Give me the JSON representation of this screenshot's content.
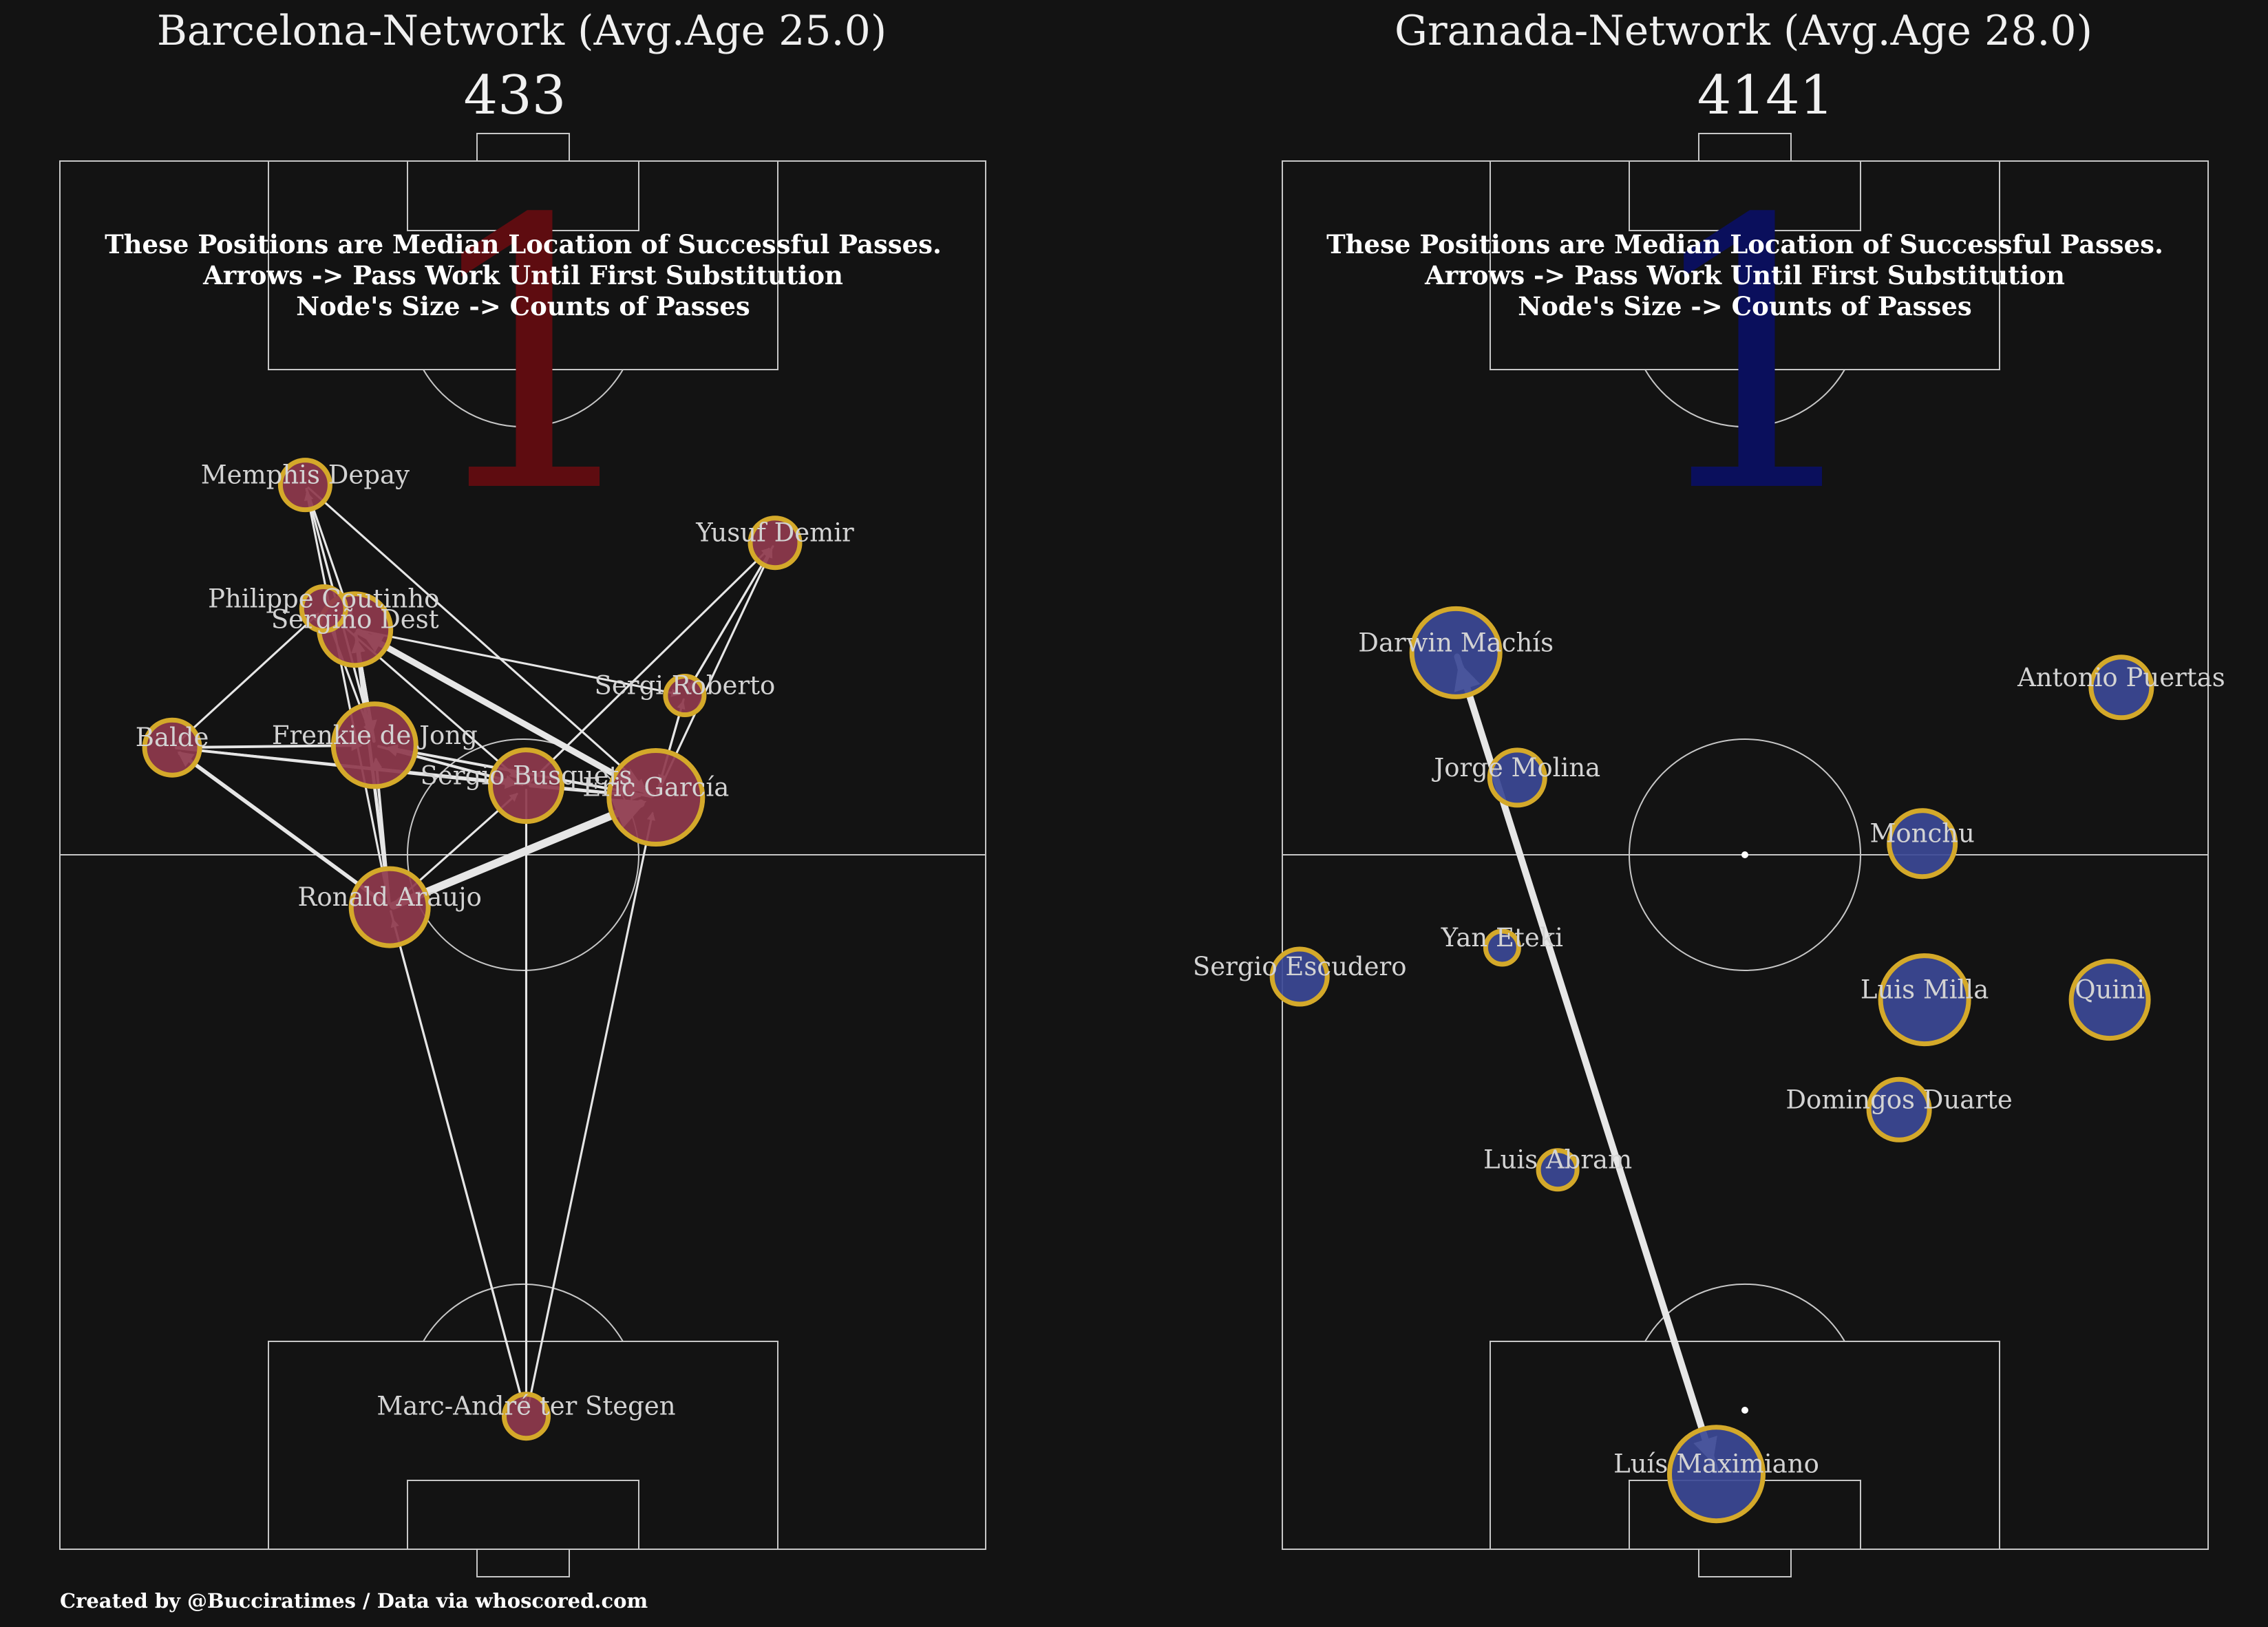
{
  "credit": "Created by @Bucciratimes / Data via whoscored.com",
  "colors": {
    "background": "#131313",
    "pitch_lines": "#c7c7c7",
    "node_edge": "#d4a92a",
    "arrow": "#e6e6e6",
    "barcelona_node": "#8f3a4d",
    "granada_node": "#3c4996",
    "barcelona_watermark": "#5e0c10",
    "granada_watermark": "#0a0f5c"
  },
  "chart_data": [
    {
      "type": "pass-network",
      "title": "Barcelona-Network (Avg.Age 25.0)",
      "subtitle": "433",
      "watermark": "1",
      "notes": [
        "These Positions are Median Location of Successful Passes.",
        "Arrows -> Pass Work Until First Substitution",
        "Node's Size -> Counts of Passes"
      ],
      "pitch": {
        "x_range": [
          0,
          80
        ],
        "y_range": [
          0,
          120
        ]
      },
      "players": [
        {
          "name": "Marc-André ter Stegen",
          "x": 40.3,
          "y": 11.5,
          "size": 4
        },
        {
          "name": "Ronald Araujo",
          "x": 28.5,
          "y": 55.5,
          "size": 7
        },
        {
          "name": "Eric García",
          "x": 51.5,
          "y": 65.0,
          "size": 8.5
        },
        {
          "name": "Sergio Busquets",
          "x": 40.3,
          "y": 66.0,
          "size": 6.5
        },
        {
          "name": "Frenkie de Jong",
          "x": 27.2,
          "y": 69.5,
          "size": 7.5
        },
        {
          "name": "Balde",
          "x": 9.7,
          "y": 69.3,
          "size": 5
        },
        {
          "name": "Sergi Roberto",
          "x": 54.0,
          "y": 73.8,
          "size": 3.5
        },
        {
          "name": "Sergiño Dest",
          "x": 25.5,
          "y": 79.5,
          "size": 6.5
        },
        {
          "name": "Philippe Coutinho",
          "x": 22.8,
          "y": 81.3,
          "size": 4
        },
        {
          "name": "Yusuf Demir",
          "x": 61.8,
          "y": 87.0,
          "size": 4.5
        },
        {
          "name": "Memphis Depay",
          "x": 21.2,
          "y": 92.0,
          "size": 4.5
        }
      ],
      "passes": [
        {
          "from": "Ronald Araujo",
          "to": "Eric García",
          "count": 12
        },
        {
          "from": "Ronald Araujo",
          "to": "Balde",
          "count": 5
        },
        {
          "from": "Ronald Araujo",
          "to": "Sergiño Dest",
          "count": 4
        },
        {
          "from": "Ronald Araujo",
          "to": "Frenkie de Jong",
          "count": 3
        },
        {
          "from": "Ronald Araujo",
          "to": "Sergio Busquets",
          "count": 2
        },
        {
          "from": "Ronald Araujo",
          "to": "Memphis Depay",
          "count": 2
        },
        {
          "from": "Sergiño Dest",
          "to": "Eric García",
          "count": 9
        },
        {
          "from": "Eric García",
          "to": "Sergiño Dest",
          "count": 7
        },
        {
          "from": "Frenkie de Jong",
          "to": "Sergiño Dest",
          "count": 4
        },
        {
          "from": "Sergiño Dest",
          "to": "Frenkie de Jong",
          "count": 4
        },
        {
          "from": "Balde",
          "to": "Sergio Busquets",
          "count": 3
        },
        {
          "from": "Balde",
          "to": "Frenkie de Jong",
          "count": 3
        },
        {
          "from": "Balde",
          "to": "Eric García",
          "count": 2
        },
        {
          "from": "Balde",
          "to": "Philippe Coutinho",
          "count": 2
        },
        {
          "from": "Frenkie de Jong",
          "to": "Sergio Busquets",
          "count": 3
        },
        {
          "from": "Sergio Busquets",
          "to": "Frenkie de Jong",
          "count": 3
        },
        {
          "from": "Sergio Busquets",
          "to": "Eric García",
          "count": 3
        },
        {
          "from": "Eric García",
          "to": "Frenkie de Jong",
          "count": 3
        },
        {
          "from": "Eric García",
          "to": "Yusuf Demir",
          "count": 2
        },
        {
          "from": "Eric García",
          "to": "Sergi Roberto",
          "count": 2
        },
        {
          "from": "Sergi Roberto",
          "to": "Eric García",
          "count": 2
        },
        {
          "from": "Sergi Roberto",
          "to": "Yusuf Demir",
          "count": 2
        },
        {
          "from": "Sergio Busquets",
          "to": "Yusuf Demir",
          "count": 2
        },
        {
          "from": "Sergiño Dest",
          "to": "Sergi Roberto",
          "count": 2
        },
        {
          "from": "Memphis Depay",
          "to": "Eric García",
          "count": 2
        },
        {
          "from": "Memphis Depay",
          "to": "Frenkie de Jong",
          "count": 2
        },
        {
          "from": "Memphis Depay",
          "to": "Sergiño Dest",
          "count": 2
        },
        {
          "from": "Frenkie de Jong",
          "to": "Memphis Depay",
          "count": 2
        },
        {
          "from": "Philippe Coutinho",
          "to": "Frenkie de Jong",
          "count": 2
        },
        {
          "from": "Philippe Coutinho",
          "to": "Sergio Busquets",
          "count": 2
        },
        {
          "from": "Marc-André ter Stegen",
          "to": "Ronald Araujo",
          "count": 2
        },
        {
          "from": "Marc-André ter Stegen",
          "to": "Eric García",
          "count": 2
        },
        {
          "from": "Ronald Araujo",
          "to": "Marc-André ter Stegen",
          "count": 2
        },
        {
          "from": "Sergio Busquets",
          "to": "Marc-André ter Stegen",
          "count": 2
        },
        {
          "from": "Yusuf Demir",
          "to": "Sergi Roberto",
          "count": 2
        }
      ]
    },
    {
      "type": "pass-network",
      "title": "Granada-Network (Avg.Age 28.0)",
      "subtitle": "4141",
      "watermark": "1",
      "notes": [
        "These Positions are Median Location of Successful Passes.",
        "Arrows -> Pass Work Until First Substitution",
        "Node's Size -> Counts of Passes"
      ],
      "pitch": {
        "x_range": [
          0,
          80
        ],
        "y_range": [
          0,
          120
        ]
      },
      "players": [
        {
          "name": "Luís Maximiano",
          "x": 37.5,
          "y": 6.5,
          "size": 8.5
        },
        {
          "name": "Luis Abram",
          "x": 23.8,
          "y": 32.8,
          "size": 3.5
        },
        {
          "name": "Domingos Duarte",
          "x": 53.3,
          "y": 38.0,
          "size": 5.5
        },
        {
          "name": "Quini",
          "x": 71.5,
          "y": 47.5,
          "size": 7
        },
        {
          "name": "Luis Milla",
          "x": 55.5,
          "y": 47.5,
          "size": 8
        },
        {
          "name": "Sergio Escudero",
          "x": 1.5,
          "y": 49.5,
          "size": 5
        },
        {
          "name": "Yan Eteki",
          "x": 19.0,
          "y": 52.0,
          "size": 3
        },
        {
          "name": "Monchu",
          "x": 55.3,
          "y": 61.0,
          "size": 6
        },
        {
          "name": "Jorge Molina",
          "x": 20.3,
          "y": 66.7,
          "size": 5
        },
        {
          "name": "Darwin Machís",
          "x": 15.0,
          "y": 77.5,
          "size": 8
        },
        {
          "name": "Antonio Puertas",
          "x": 72.5,
          "y": 74.5,
          "size": 5.5
        }
      ],
      "passes": [
        {
          "from": "Luís Maximiano",
          "to": "Darwin Machís",
          "count": 10
        },
        {
          "from": "Darwin Machís",
          "to": "Luís Maximiano",
          "count": 9
        }
      ]
    }
  ]
}
